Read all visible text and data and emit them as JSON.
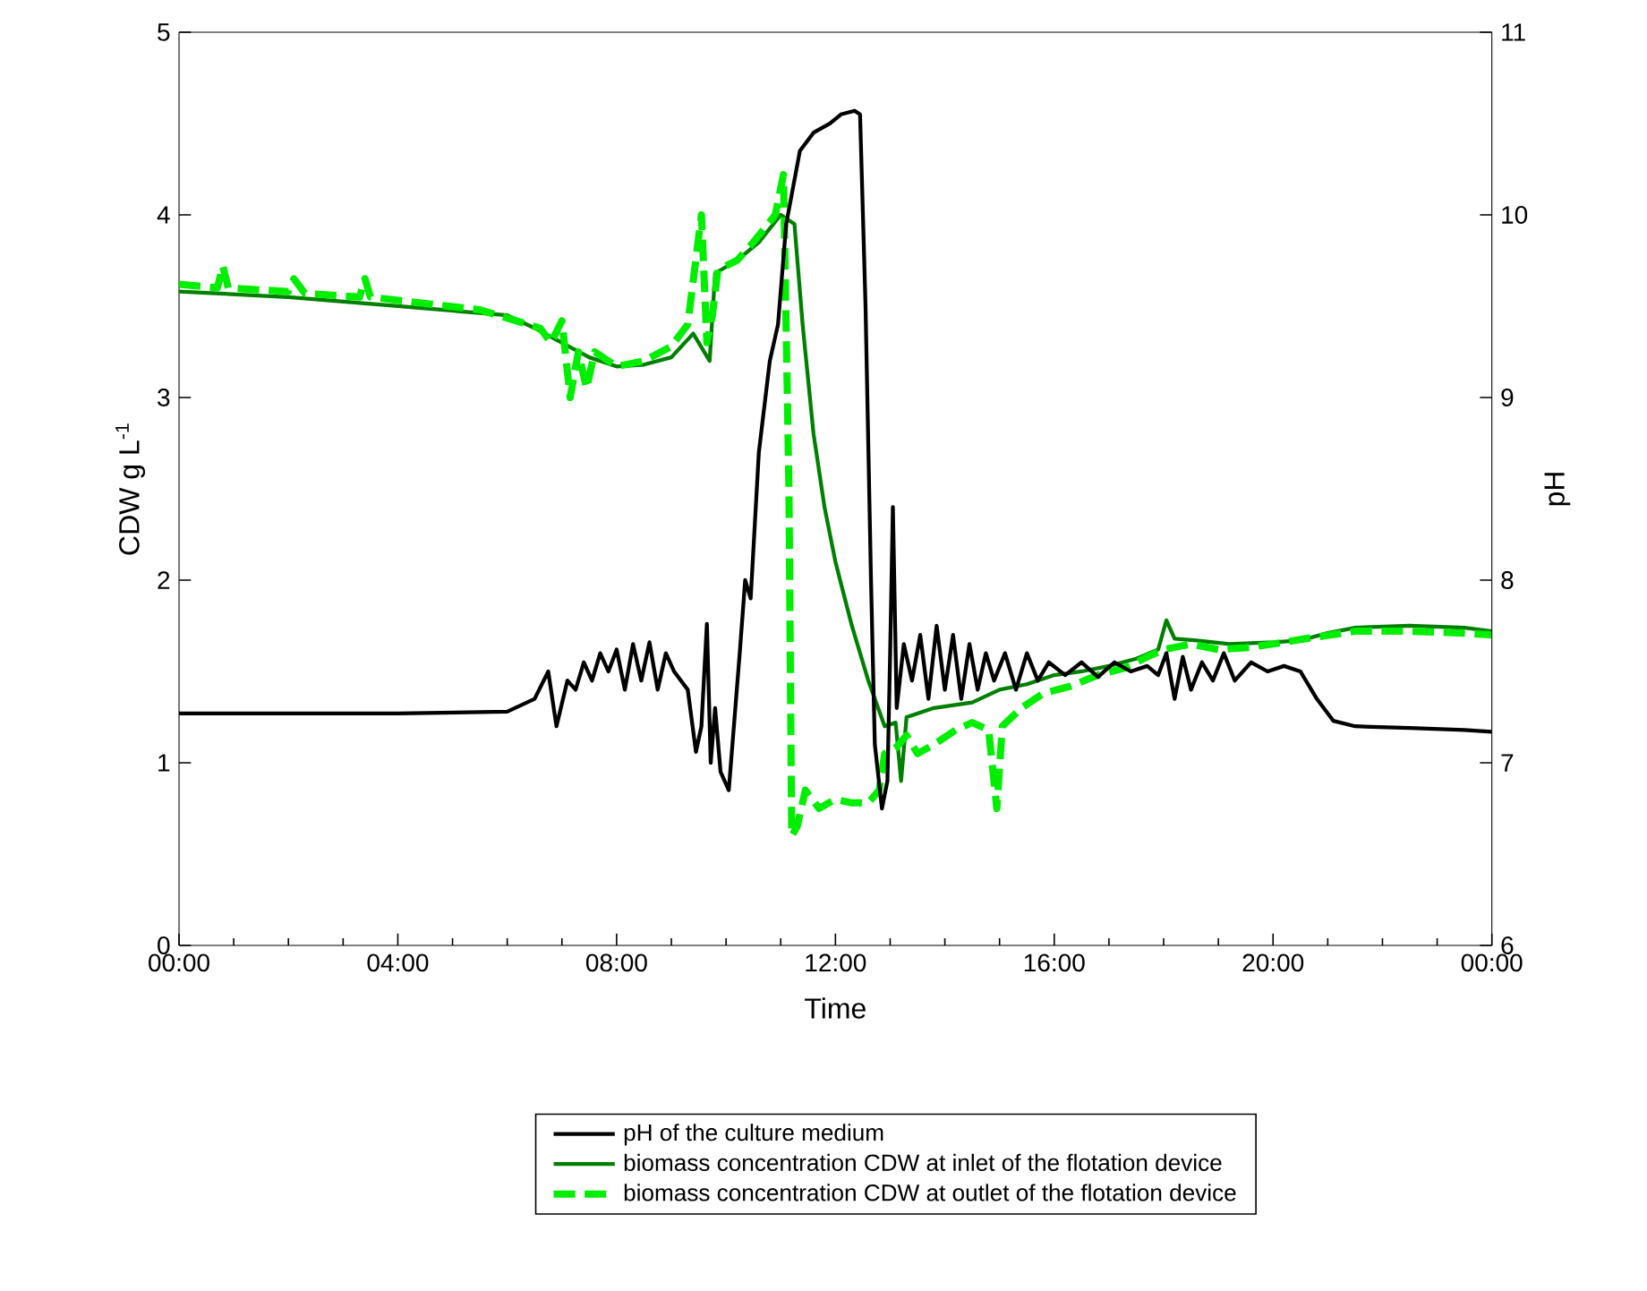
{
  "chart_data": {
    "type": "line",
    "xlabel": "Time",
    "ylabel": "CDW g L$^{-1}$",
    "y2label": "pH",
    "legend": "bottom",
    "xlim": [
      0,
      24
    ],
    "xticks": [
      {
        "value": 0,
        "label": "00:00"
      },
      {
        "value": 4,
        "label": "04:00"
      },
      {
        "value": 8,
        "label": "08:00"
      },
      {
        "value": 12,
        "label": "12:00"
      },
      {
        "value": 16,
        "label": "16:00"
      },
      {
        "value": 20,
        "label": "20:00"
      },
      {
        "value": 24,
        "label": "00:00"
      }
    ],
    "ylim": [
      0,
      5
    ],
    "yticks": [
      0,
      1,
      2,
      3,
      4,
      5
    ],
    "y2lim": [
      6,
      11
    ],
    "y2ticks": [
      6,
      7,
      8,
      9,
      10,
      11
    ],
    "series": [
      {
        "name": "pH of the culture medium",
        "color": "#000000",
        "axis": "y2",
        "line_style": "solid",
        "x": [
          0,
          2,
          4,
          6,
          6.5,
          6.75,
          6.9,
          7.1,
          7.25,
          7.4,
          7.55,
          7.7,
          7.85,
          8.0,
          8.15,
          8.3,
          8.45,
          8.6,
          8.75,
          8.9,
          9.05,
          9.3,
          9.45,
          9.55,
          9.65,
          9.72,
          9.8,
          9.9,
          10.05,
          10.25,
          10.35,
          10.45,
          10.6,
          10.8,
          10.95,
          11.1,
          11.35,
          11.6,
          11.9,
          12.1,
          12.35,
          12.45,
          12.55,
          12.65,
          12.72,
          12.85,
          12.95,
          13.0,
          13.05,
          13.12,
          13.25,
          13.4,
          13.55,
          13.7,
          13.85,
          14.0,
          14.15,
          14.3,
          14.45,
          14.6,
          14.75,
          14.9,
          15.1,
          15.3,
          15.5,
          15.7,
          15.9,
          16.2,
          16.5,
          16.8,
          17.1,
          17.4,
          17.7,
          17.9,
          18.05,
          18.2,
          18.35,
          18.5,
          18.7,
          18.9,
          19.1,
          19.3,
          19.6,
          19.9,
          20.2,
          20.5,
          20.8,
          21.1,
          21.5,
          22.5,
          23.5,
          24
        ],
        "values": [
          7.27,
          7.27,
          7.27,
          7.28,
          7.35,
          7.5,
          7.2,
          7.45,
          7.4,
          7.55,
          7.45,
          7.6,
          7.5,
          7.62,
          7.4,
          7.65,
          7.45,
          7.66,
          7.4,
          7.6,
          7.5,
          7.4,
          7.06,
          7.2,
          7.76,
          7.0,
          7.3,
          6.95,
          6.85,
          7.6,
          8.0,
          7.9,
          8.7,
          9.2,
          9.4,
          9.95,
          10.35,
          10.45,
          10.5,
          10.55,
          10.57,
          10.55,
          9.5,
          8.0,
          7.1,
          6.75,
          6.9,
          7.6,
          8.4,
          7.3,
          7.65,
          7.45,
          7.7,
          7.35,
          7.75,
          7.4,
          7.7,
          7.35,
          7.65,
          7.4,
          7.6,
          7.45,
          7.6,
          7.4,
          7.6,
          7.45,
          7.55,
          7.48,
          7.55,
          7.47,
          7.55,
          7.5,
          7.53,
          7.48,
          7.6,
          7.35,
          7.58,
          7.4,
          7.55,
          7.45,
          7.6,
          7.45,
          7.55,
          7.5,
          7.53,
          7.5,
          7.35,
          7.23,
          7.2,
          7.19,
          7.18,
          7.17
        ]
      },
      {
        "name": "biomass concentration CDW at inlet of the flotation device",
        "color": "#008000",
        "line_style": "solid",
        "x": [
          0,
          2,
          4,
          6,
          6.5,
          7,
          7.5,
          8,
          8.5,
          9,
          9.4,
          9.7,
          9.8,
          10.2,
          10.6,
          11.0,
          11.25,
          11.4,
          11.6,
          11.8,
          12.0,
          12.3,
          12.6,
          12.9,
          13.1,
          13.2,
          13.3,
          13.8,
          14.5,
          15.0,
          15.5,
          16,
          16.5,
          17,
          17.5,
          17.9,
          18.05,
          18.2,
          18.6,
          19.2,
          20,
          20.5,
          21,
          21.5,
          22.5,
          23.5,
          24
        ],
        "values": [
          3.58,
          3.55,
          3.5,
          3.45,
          3.38,
          3.3,
          3.22,
          3.17,
          3.18,
          3.22,
          3.35,
          3.2,
          3.68,
          3.75,
          3.85,
          4.0,
          3.95,
          3.4,
          2.8,
          2.4,
          2.1,
          1.75,
          1.45,
          1.2,
          1.22,
          0.9,
          1.25,
          1.3,
          1.33,
          1.4,
          1.43,
          1.48,
          1.5,
          1.53,
          1.57,
          1.62,
          1.78,
          1.68,
          1.67,
          1.65,
          1.66,
          1.67,
          1.71,
          1.74,
          1.75,
          1.74,
          1.72
        ]
      },
      {
        "name": "biomass concentration CDW at outlet of the flotation device",
        "color": "#00ee00",
        "line_style": "dashed",
        "x": [
          0,
          0.7,
          0.8,
          0.9,
          2.0,
          2.1,
          2.3,
          3.3,
          3.4,
          3.5,
          5.5,
          6.6,
          6.8,
          7.0,
          7.15,
          7.3,
          7.45,
          7.6,
          8.0,
          8.5,
          9.0,
          9.3,
          9.55,
          9.65,
          9.75,
          9.85,
          10.2,
          10.5,
          10.9,
          11.05,
          11.15,
          11.2,
          11.3,
          11.45,
          11.7,
          12.0,
          12.3,
          12.6,
          12.8,
          12.9,
          13.1,
          13.3,
          13.5,
          13.8,
          14.2,
          14.5,
          14.8,
          14.95,
          15.05,
          15.4,
          15.8,
          16.3,
          16.8,
          17.3,
          17.7,
          18.0,
          18.5,
          19,
          19.5,
          20.0,
          20.6,
          21.5,
          22.5,
          23.5,
          24
        ],
        "values": [
          3.62,
          3.6,
          3.72,
          3.6,
          3.58,
          3.65,
          3.57,
          3.55,
          3.65,
          3.55,
          3.48,
          3.38,
          3.3,
          3.42,
          3.0,
          3.25,
          3.05,
          3.25,
          3.17,
          3.2,
          3.28,
          3.4,
          4.0,
          3.3,
          3.45,
          3.7,
          3.75,
          3.85,
          4.0,
          4.22,
          2.5,
          0.6,
          0.65,
          0.85,
          0.75,
          0.8,
          0.78,
          0.78,
          0.85,
          1.05,
          1.08,
          1.15,
          1.05,
          1.1,
          1.18,
          1.22,
          1.18,
          0.75,
          1.2,
          1.3,
          1.38,
          1.42,
          1.48,
          1.52,
          1.58,
          1.62,
          1.65,
          1.62,
          1.63,
          1.65,
          1.68,
          1.72,
          1.72,
          1.71,
          1.7
        ]
      }
    ]
  }
}
